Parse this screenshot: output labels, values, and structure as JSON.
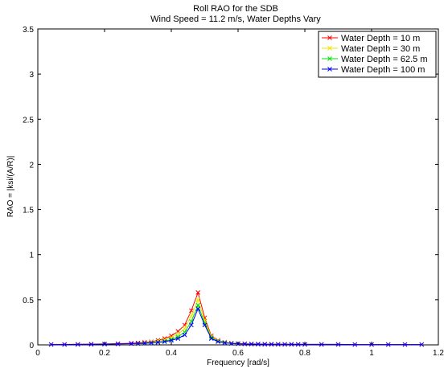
{
  "chart_data": {
    "type": "line",
    "title": "Roll RAO for the SDB",
    "subtitle": "Wind Speed = 11.2 m/s, Water Depths Vary",
    "xlabel": "Frequency [rad/s]",
    "ylabel": "RAO = |ksi/(A/R)|",
    "xlim": [
      0,
      1.2
    ],
    "ylim": [
      0,
      3.5
    ],
    "xticks": [
      "0",
      "0.2",
      "0.4",
      "0.6",
      "0.8",
      "1",
      "1.2"
    ],
    "yticks": [
      "0",
      "0.5",
      "1",
      "1.5",
      "2",
      "2.5",
      "3",
      "3.5"
    ],
    "grid": false,
    "legend_position": "top-right",
    "series": [
      {
        "name": "Water Depth = 10 m",
        "color": "#ff0000",
        "x": [
          0.04,
          0.08,
          0.12,
          0.16,
          0.2,
          0.24,
          0.28,
          0.3,
          0.32,
          0.34,
          0.36,
          0.38,
          0.4,
          0.42,
          0.44,
          0.46,
          0.48,
          0.5,
          0.52,
          0.54,
          0.56,
          0.58,
          0.6,
          0.62,
          0.64,
          0.66,
          0.68,
          0.7,
          0.72,
          0.74,
          0.76,
          0.78,
          0.8,
          0.85,
          0.9,
          0.95,
          1.0,
          1.05,
          1.1,
          1.15
        ],
        "y": [
          0.005,
          0.005,
          0.006,
          0.008,
          0.01,
          0.013,
          0.018,
          0.022,
          0.028,
          0.035,
          0.05,
          0.07,
          0.1,
          0.15,
          0.22,
          0.38,
          0.58,
          0.3,
          0.1,
          0.05,
          0.03,
          0.02,
          0.015,
          0.012,
          0.01,
          0.009,
          0.008,
          0.007,
          0.007,
          0.006,
          0.006,
          0.006,
          0.005,
          0.005,
          0.005,
          0.004,
          0.004,
          0.004,
          0.004,
          0.004
        ]
      },
      {
        "name": "Water Depth = 30 m",
        "color": "#e8e800",
        "x": [
          0.3,
          0.32,
          0.34,
          0.36,
          0.38,
          0.4,
          0.42,
          0.44,
          0.46,
          0.48,
          0.5,
          0.52,
          0.54,
          0.56,
          0.58,
          0.6
        ],
        "y": [
          0.015,
          0.02,
          0.03,
          0.04,
          0.055,
          0.08,
          0.12,
          0.18,
          0.32,
          0.5,
          0.27,
          0.09,
          0.045,
          0.028,
          0.018,
          0.013
        ]
      },
      {
        "name": "Water Depth = 62.5 m",
        "color": "#00e000",
        "x": [
          0.3,
          0.32,
          0.34,
          0.36,
          0.38,
          0.4,
          0.42,
          0.44,
          0.46,
          0.48,
          0.5,
          0.52,
          0.54,
          0.56,
          0.58,
          0.6
        ],
        "y": [
          0.012,
          0.016,
          0.022,
          0.03,
          0.04,
          0.06,
          0.09,
          0.14,
          0.26,
          0.44,
          0.24,
          0.08,
          0.04,
          0.025,
          0.016,
          0.012
        ]
      },
      {
        "name": "Water Depth = 100 m",
        "color": "#0000ff",
        "x": [
          0.04,
          0.08,
          0.12,
          0.16,
          0.2,
          0.24,
          0.28,
          0.3,
          0.32,
          0.34,
          0.36,
          0.38,
          0.4,
          0.42,
          0.44,
          0.46,
          0.48,
          0.5,
          0.52,
          0.54,
          0.56,
          0.58,
          0.6,
          0.62,
          0.64,
          0.66,
          0.68,
          0.7,
          0.72,
          0.74,
          0.76,
          0.78,
          0.8,
          0.85,
          0.9,
          0.95,
          1.0,
          1.05,
          1.1,
          1.15
        ],
        "y": [
          0.004,
          0.004,
          0.005,
          0.006,
          0.008,
          0.01,
          0.013,
          0.015,
          0.018,
          0.022,
          0.028,
          0.035,
          0.05,
          0.07,
          0.11,
          0.22,
          0.4,
          0.22,
          0.07,
          0.035,
          0.022,
          0.015,
          0.012,
          0.01,
          0.009,
          0.008,
          0.007,
          0.007,
          0.006,
          0.006,
          0.006,
          0.005,
          0.005,
          0.005,
          0.005,
          0.004,
          0.004,
          0.004,
          0.004,
          0.004
        ]
      }
    ]
  }
}
